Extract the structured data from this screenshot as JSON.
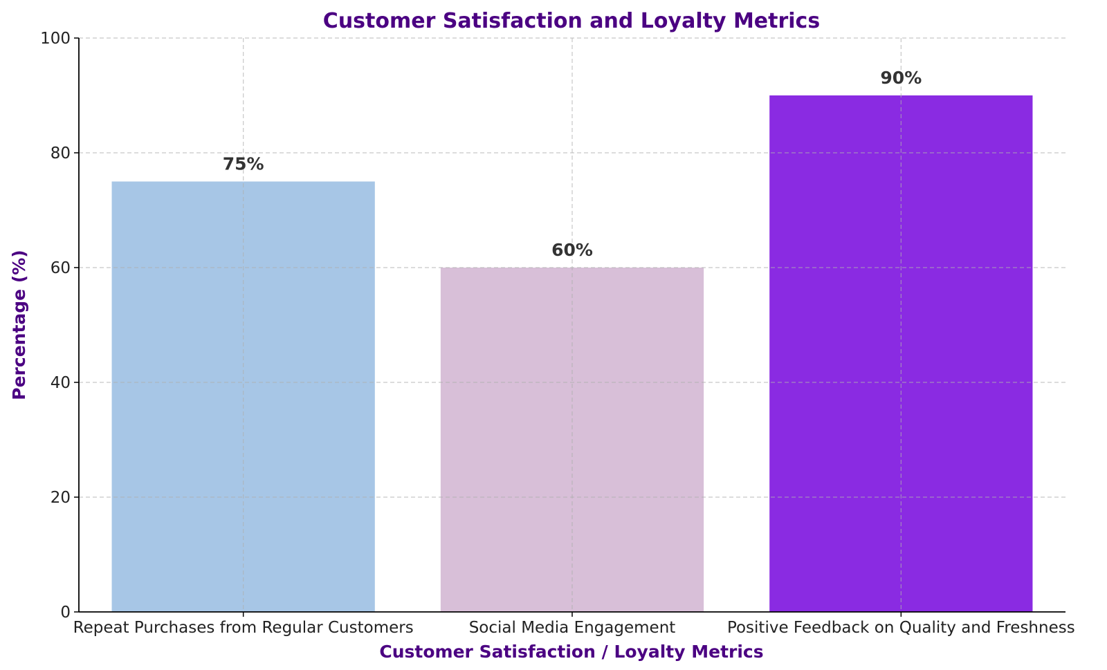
{
  "chart_data": {
    "type": "bar",
    "title": "Customer Satisfaction and Loyalty Metrics",
    "xlabel": "Customer Satisfaction / Loyalty Metrics",
    "ylabel": "Percentage (%)",
    "categories": [
      "Repeat Purchases from Regular Customers",
      "Social Media Engagement",
      "Positive Feedback on Quality and Freshness"
    ],
    "values": [
      75,
      60,
      90
    ],
    "value_labels": [
      "75%",
      "60%",
      "90%"
    ],
    "bar_colors": [
      "#a7c6e6",
      "#d8bfd8",
      "#8a2be2"
    ],
    "ylim": [
      0,
      100
    ],
    "yticks": [
      "0",
      "20",
      "40",
      "60",
      "80",
      "100"
    ],
    "grid": true,
    "title_color": "#4b0082",
    "label_color": "#4b0082"
  }
}
